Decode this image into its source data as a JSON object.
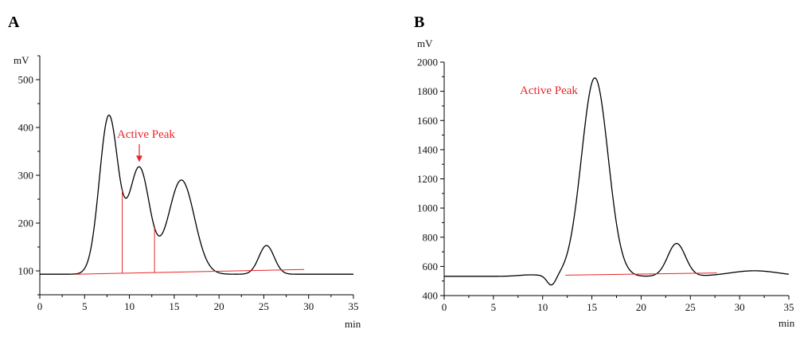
{
  "chart_data": [
    {
      "panel": "A",
      "type": "line",
      "xlabel": "min",
      "ylabel": "mV",
      "xlim": [
        0,
        35
      ],
      "ylim": [
        50,
        550
      ],
      "xticks": [
        0,
        5,
        10,
        15,
        20,
        25,
        30,
        35
      ],
      "yticks": [
        100,
        200,
        300,
        400,
        500
      ],
      "trace_color": "#000000",
      "baseline_value": 93,
      "peaks": [
        {
          "center": 7.7,
          "height": 330,
          "width": 1.05
        },
        {
          "center": 11.1,
          "height": 222,
          "width": 1.15
        },
        {
          "center": 15.8,
          "height": 197,
          "width": 1.45
        },
        {
          "center": 25.3,
          "height": 60,
          "width": 0.85
        }
      ],
      "integration_baseline": {
        "color": "#e8262a",
        "from": [
          4,
          93
        ],
        "to": [
          29.5,
          103
        ]
      },
      "integration_drops": [
        9.2,
        12.8
      ],
      "annotation": {
        "text": "Active Peak",
        "color": "#e8262a",
        "arrow_x": 11.1
      }
    },
    {
      "panel": "B",
      "type": "line",
      "xlabel": "min",
      "ylabel": "mV",
      "xlim": [
        0,
        35
      ],
      "ylim": [
        400,
        2000
      ],
      "xticks": [
        0,
        5,
        10,
        15,
        20,
        25,
        30,
        35
      ],
      "yticks": [
        400,
        600,
        800,
        1000,
        1200,
        1400,
        1600,
        1800,
        2000
      ],
      "trace_color": "#000000",
      "baseline_value": 532,
      "peaks": [
        {
          "center": 8.8,
          "height": 10,
          "width": 1.2
        },
        {
          "center": 10.9,
          "height": -68,
          "width": 0.45
        },
        {
          "center": 15.3,
          "height": 1360,
          "width": 1.35
        },
        {
          "center": 23.6,
          "height": 225,
          "width": 0.9
        },
        {
          "center": 31.5,
          "height": 38,
          "width": 2.5
        }
      ],
      "integration_baseline": {
        "color": "#e8262a",
        "from": [
          12.3,
          540
        ],
        "to": [
          27.7,
          555
        ]
      },
      "integration_drops": [],
      "annotation": {
        "text": "Active Peak",
        "color": "#e8262a",
        "arrow_x": null
      }
    }
  ]
}
